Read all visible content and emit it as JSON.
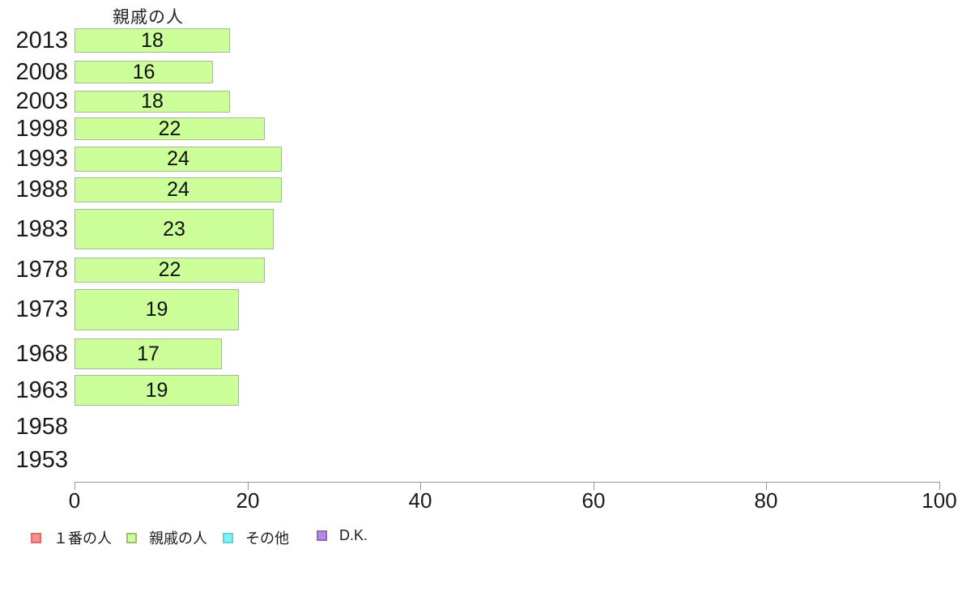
{
  "chart_data": {
    "type": "bar",
    "orientation": "horizontal",
    "title": "親戚の人",
    "categories": [
      "2013",
      "2008",
      "2003",
      "1998",
      "1993",
      "1988",
      "1983",
      "1978",
      "1973",
      "1968",
      "1963",
      "1958",
      "1953"
    ],
    "values": [
      18,
      16,
      18,
      22,
      24,
      24,
      23,
      22,
      19,
      17,
      19,
      null,
      null
    ],
    "bar_labels": [
      "18",
      "16",
      "18",
      "22",
      "24",
      "24",
      "23",
      "22",
      "19",
      "17",
      "19",
      "",
      ""
    ],
    "xlim": [
      0,
      100
    ],
    "x_ticks": [
      "0",
      "20",
      "40",
      "60",
      "80",
      "100"
    ],
    "grid": false,
    "legend_position": "bottom-left",
    "colors": {
      "bar_fill": "#ccff99",
      "bar_border": "#a9b69c",
      "axis_line": "#999999",
      "text": "#1a1a1a"
    },
    "legend": [
      {
        "label": "１番の人",
        "fill": "#f99090",
        "border": "#d97070"
      },
      {
        "label": "親戚の人",
        "fill": "#ccff99",
        "border": "#9fba7d"
      },
      {
        "label": "その他",
        "fill": "#80f2f2",
        "border": "#5fd4d4"
      },
      {
        "label": "D.K.",
        "fill": "#b18ce6",
        "border": "#9068c6"
      }
    ]
  }
}
